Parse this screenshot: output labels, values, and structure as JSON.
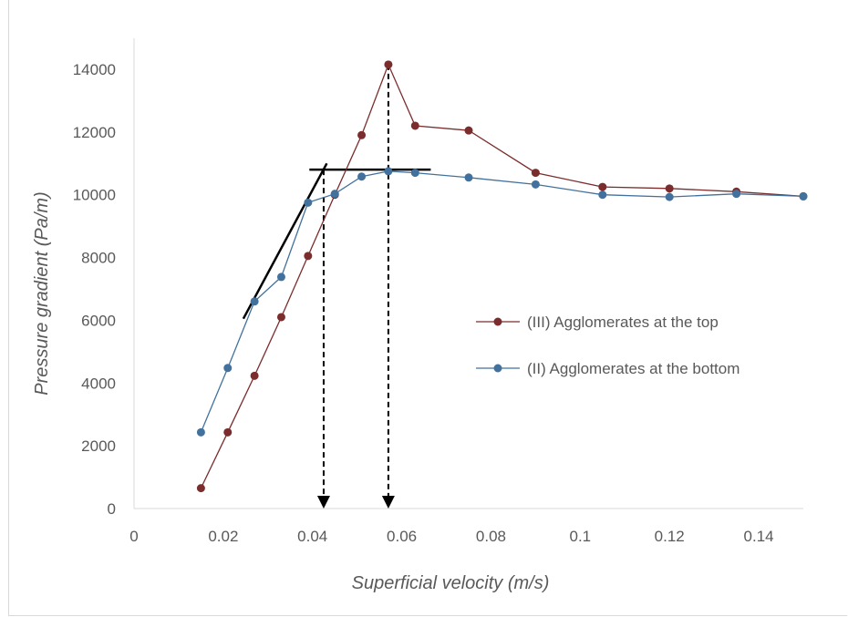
{
  "chart_data": {
    "type": "line",
    "title": "",
    "xlabel": "Superficial velocity (m/s)",
    "ylabel": "Pressure gradient (Pa/m)",
    "xlim": [
      0,
      0.15
    ],
    "ylim": [
      0,
      14000
    ],
    "x_ticks": [
      "0",
      "0.02",
      "0.04",
      "0.06",
      "0.08",
      "0.1",
      "0.12",
      "0.14"
    ],
    "y_ticks": [
      "0",
      "2000",
      "4000",
      "6000",
      "8000",
      "10000",
      "12000",
      "14000"
    ],
    "grid": false,
    "legend_position": "right",
    "series": [
      {
        "name": "(III) Agglomerates at the top",
        "color": "#7b2c2c",
        "points": [
          [
            0.015,
            650
          ],
          [
            0.021,
            2430
          ],
          [
            0.027,
            4230
          ],
          [
            0.033,
            6100
          ],
          [
            0.039,
            8050
          ],
          [
            0.045,
            10000
          ],
          [
            0.051,
            11900
          ],
          [
            0.057,
            14150
          ],
          [
            0.063,
            12200
          ],
          [
            0.075,
            12050
          ],
          [
            0.09,
            10700
          ],
          [
            0.105,
            10250
          ],
          [
            0.12,
            10200
          ],
          [
            0.135,
            10100
          ],
          [
            0.15,
            9950
          ]
        ]
      },
      {
        "name": "(II) Agglomerates at the bottom",
        "color": "#41719c",
        "points": [
          [
            0.015,
            2430
          ],
          [
            0.021,
            4480
          ],
          [
            0.027,
            6600
          ],
          [
            0.033,
            7380
          ],
          [
            0.039,
            9750
          ],
          [
            0.045,
            10030
          ],
          [
            0.051,
            10580
          ],
          [
            0.057,
            10750
          ],
          [
            0.063,
            10700
          ],
          [
            0.075,
            10550
          ],
          [
            0.09,
            10330
          ],
          [
            0.105,
            10000
          ],
          [
            0.12,
            9930
          ],
          [
            0.135,
            10030
          ],
          [
            0.15,
            9950
          ]
        ]
      }
    ],
    "annotations": {
      "tangent_line": [
        [
          0.0245,
          6050
        ],
        [
          0.0432,
          11000
        ]
      ],
      "plateau_line": [
        [
          0.0393,
          10800
        ],
        [
          0.0665,
          10800
        ]
      ],
      "arrows": [
        {
          "x": 0.0425,
          "y_from": 10800,
          "y_to": 0
        },
        {
          "x": 0.057,
          "y_from": 14150,
          "y_to": 0
        }
      ]
    }
  }
}
